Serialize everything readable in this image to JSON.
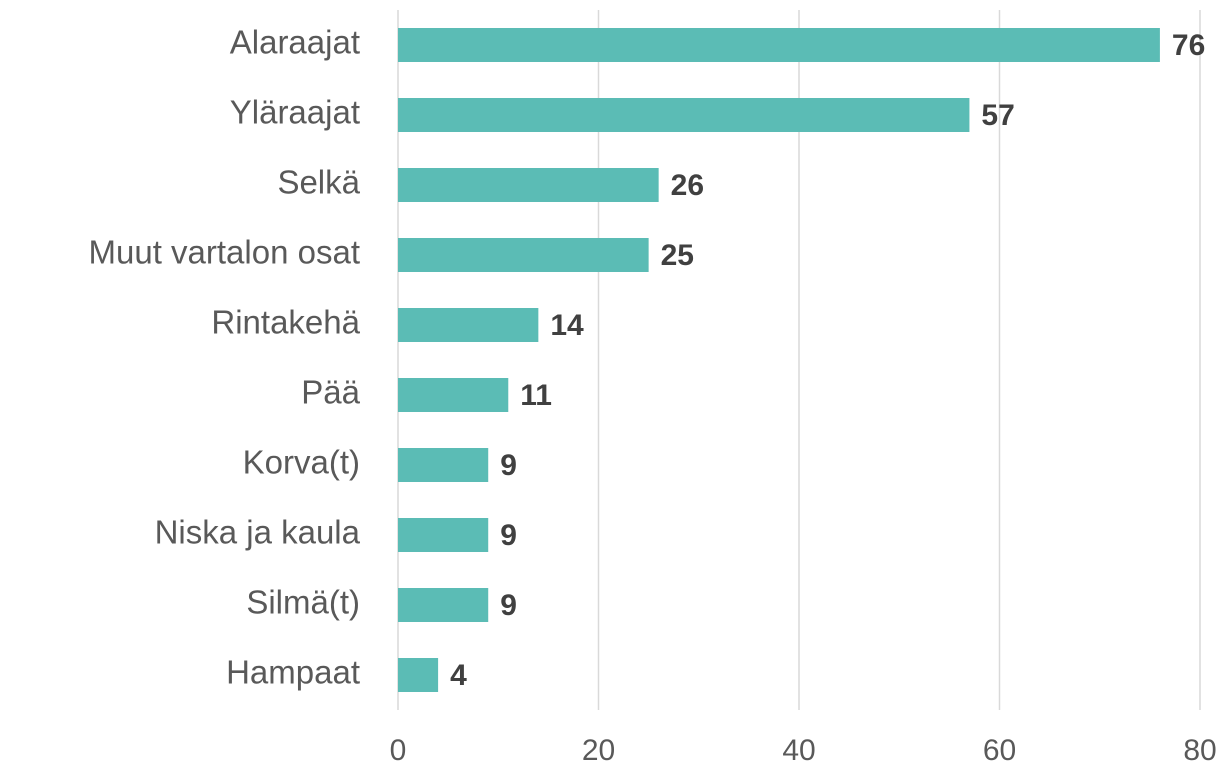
{
  "chart_data": {
    "type": "barh",
    "categories": [
      "Alaraajat",
      "Yläraajat",
      "Selkä",
      "Muut vartalon osat",
      "Rintakehä",
      "Pää",
      "Korva(t)",
      "Niska ja kaula",
      "Silmä(t)",
      "Hampaat"
    ],
    "values": [
      76,
      57,
      26,
      25,
      14,
      11,
      9,
      9,
      9,
      4
    ],
    "color": "#5bbcb5",
    "xlim": [
      0,
      80
    ],
    "xticks": [
      0,
      20,
      40,
      60,
      80
    ],
    "grid": true
  }
}
